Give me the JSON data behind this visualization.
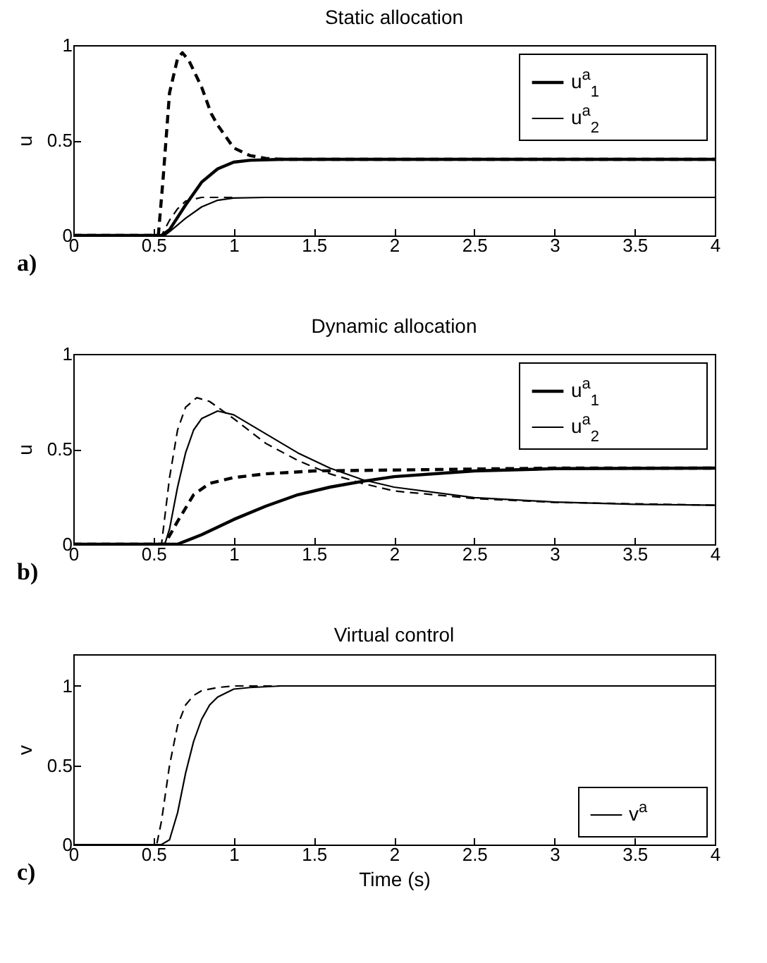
{
  "chart_data": [
    {
      "type": "line",
      "title": "Static allocation",
      "ylabel": "u",
      "annotations": [
        "a)"
      ],
      "xlim": [
        0,
        4
      ],
      "ylim": [
        0,
        1
      ],
      "xticks": [
        0,
        0.5,
        1,
        1.5,
        2,
        2.5,
        3,
        3.5,
        4
      ],
      "yticks": [
        0,
        0.5,
        1
      ],
      "grid": false,
      "legend": "top right",
      "series": [
        {
          "name": "u$^{a}$$_{1}$",
          "color": "#000000",
          "line_style": "solid",
          "x": [
            0,
            0.55,
            0.6,
            0.7,
            0.8,
            0.9,
            1.0,
            1.1,
            1.3,
            4
          ],
          "values": [
            0,
            0,
            0.03,
            0.16,
            0.28,
            0.35,
            0.385,
            0.395,
            0.4,
            0.4
          ]
        },
        {
          "name": "u$^{a}$$_{2}$",
          "color": "#000000",
          "line_style": "solid",
          "x": [
            0,
            0.57,
            0.6,
            0.7,
            0.8,
            0.9,
            1.0,
            1.2,
            4
          ],
          "values": [
            0,
            0,
            0.02,
            0.09,
            0.15,
            0.185,
            0.197,
            0.2,
            0.2
          ]
        },
        {
          "color": "#000000",
          "line_style": "dashed",
          "x": [
            0,
            0.53,
            0.56,
            0.6,
            0.65,
            0.68,
            0.72,
            0.8,
            0.86,
            0.9,
            1.0,
            1.1,
            1.2,
            1.3,
            4
          ],
          "values": [
            0,
            0,
            0.3,
            0.75,
            0.93,
            0.96,
            0.92,
            0.78,
            0.64,
            0.58,
            0.46,
            0.42,
            0.405,
            0.4,
            0.4
          ]
        },
        {
          "color": "#000000",
          "line_style": "dashed",
          "x": [
            0,
            0.55,
            0.6,
            0.65,
            0.7,
            0.8,
            1.0
          ],
          "values": [
            0,
            0,
            0.08,
            0.14,
            0.18,
            0.2,
            0.2
          ]
        }
      ]
    },
    {
      "type": "line",
      "title": "Dynamic allocation",
      "ylabel": "u",
      "annotations": [
        "b)"
      ],
      "xlim": [
        0,
        4
      ],
      "ylim": [
        0,
        1
      ],
      "xticks": [
        0,
        0.5,
        1,
        1.5,
        2,
        2.5,
        3,
        3.5,
        4
      ],
      "yticks": [
        0,
        0.5,
        1
      ],
      "grid": false,
      "legend": "top right",
      "series": [
        {
          "name": "u$^{a}$$_{1}$",
          "color": "#000000",
          "line_style": "solid",
          "x": [
            0,
            0.65,
            0.8,
            1.0,
            1.2,
            1.4,
            1.6,
            1.8,
            2.0,
            2.5,
            3.0,
            4
          ],
          "values": [
            0,
            0,
            0.05,
            0.13,
            0.2,
            0.26,
            0.3,
            0.33,
            0.355,
            0.385,
            0.397,
            0.4
          ]
        },
        {
          "name": "u$^{a}$$_{2}$",
          "color": "#000000",
          "line_style": "solid",
          "x": [
            0,
            0.57,
            0.6,
            0.65,
            0.7,
            0.75,
            0.8,
            0.9,
            1.0,
            1.2,
            1.4,
            1.6,
            1.8,
            2.0,
            2.5,
            3.0,
            3.5,
            4
          ],
          "values": [
            0,
            0,
            0.08,
            0.3,
            0.48,
            0.6,
            0.66,
            0.7,
            0.68,
            0.58,
            0.48,
            0.4,
            0.34,
            0.3,
            0.245,
            0.222,
            0.21,
            0.205
          ]
        },
        {
          "color": "#000000",
          "line_style": "dashed",
          "x": [
            0,
            0.57,
            0.65,
            0.75,
            0.85,
            1.0,
            1.2,
            1.5,
            2.0,
            3.0,
            4
          ],
          "values": [
            0,
            0,
            0.12,
            0.26,
            0.32,
            0.35,
            0.37,
            0.385,
            0.39,
            0.4,
            0.4
          ]
        },
        {
          "color": "#000000",
          "line_style": "dashed",
          "x": [
            0,
            0.55,
            0.6,
            0.65,
            0.7,
            0.77,
            0.85,
            1.0,
            1.2,
            1.4,
            1.6,
            1.8,
            2.0,
            2.5,
            3.0,
            4
          ],
          "values": [
            0,
            0,
            0.35,
            0.6,
            0.72,
            0.77,
            0.75,
            0.66,
            0.53,
            0.44,
            0.37,
            0.32,
            0.28,
            0.24,
            0.22,
            0.205
          ]
        }
      ]
    },
    {
      "type": "line",
      "title": "Virtual control",
      "xlabel": "Time (s)",
      "ylabel": "v",
      "annotations": [
        "c)"
      ],
      "xlim": [
        0,
        4
      ],
      "ylim": [
        0,
        1.2
      ],
      "xticks": [
        0,
        0.5,
        1,
        1.5,
        2,
        2.5,
        3,
        3.5,
        4
      ],
      "yticks": [
        0,
        0.5,
        1
      ],
      "grid": false,
      "legend": "bottom right",
      "series": [
        {
          "name": "v$^{a}$",
          "color": "#000000",
          "line_style": "solid",
          "x": [
            0,
            0.55,
            0.6,
            0.65,
            0.7,
            0.75,
            0.8,
            0.85,
            0.9,
            1.0,
            1.1,
            1.3,
            4
          ],
          "values": [
            0,
            0,
            0.03,
            0.2,
            0.45,
            0.65,
            0.79,
            0.88,
            0.93,
            0.98,
            0.99,
            1,
            1
          ]
        },
        {
          "color": "#000000",
          "line_style": "dashed",
          "x": [
            0,
            0.52,
            0.55,
            0.6,
            0.65,
            0.7,
            0.75,
            0.8,
            0.9,
            1.0,
            4
          ],
          "values": [
            0,
            0,
            0.15,
            0.5,
            0.75,
            0.88,
            0.94,
            0.97,
            0.99,
            1,
            1
          ]
        }
      ]
    }
  ]
}
